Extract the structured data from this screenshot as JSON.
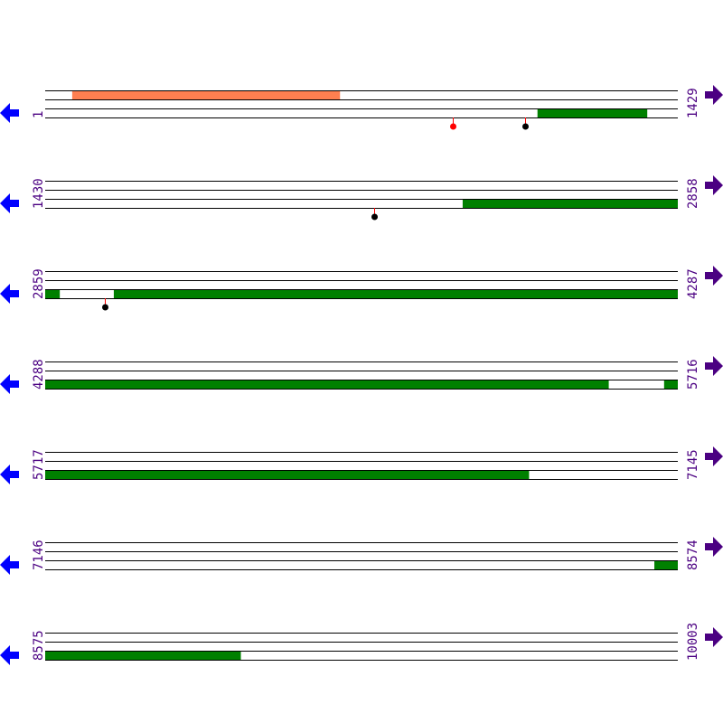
{
  "colors": {
    "line": "#000000",
    "feature_green": "#008000",
    "feature_orange": "#ff7f50",
    "label": "#4b0082",
    "left_arrow": "#0000ff",
    "right_arrow": "#4b0082",
    "marker_red": "#ff0000",
    "marker_black": "#000000",
    "stem": "#ff0000"
  },
  "icons": {
    "left": "arrow-left-icon",
    "right": "arrow-right-icon"
  },
  "rows": [
    {
      "start": "1",
      "end": "1429",
      "s": 1,
      "e": 1429,
      "features": [
        {
          "lane": 0,
          "from": 62,
          "to": 666,
          "color": "feature_orange"
        },
        {
          "lane": 2,
          "from": 1113,
          "to": 1360,
          "color": "feature_green"
        }
      ],
      "markers": [
        {
          "pos": 921,
          "color": "marker_red"
        },
        {
          "pos": 1085,
          "color": "marker_black"
        }
      ]
    },
    {
      "start": "1430",
      "end": "2858",
      "s": 1430,
      "e": 2858,
      "features": [
        {
          "lane": 2,
          "from": 2373,
          "to": 2858,
          "color": "feature_green"
        }
      ],
      "markers": [
        {
          "pos": 2173,
          "color": "marker_black"
        }
      ]
    },
    {
      "start": "2859",
      "end": "4287",
      "s": 2859,
      "e": 4287,
      "features": [
        {
          "lane": 2,
          "from": 2859,
          "to": 2891,
          "color": "feature_green"
        },
        {
          "lane": 2,
          "from": 3014,
          "to": 4287,
          "color": "feature_green"
        }
      ],
      "markers": [
        {
          "pos": 2994,
          "color": "marker_black"
        }
      ]
    },
    {
      "start": "4288",
      "end": "5716",
      "s": 4288,
      "e": 5716,
      "features": [
        {
          "lane": 2,
          "from": 4288,
          "to": 5560,
          "color": "feature_green"
        },
        {
          "lane": 2,
          "from": 5686,
          "to": 5716,
          "color": "feature_green"
        }
      ],
      "markers": []
    },
    {
      "start": "5717",
      "end": "7145",
      "s": 5717,
      "e": 7145,
      "features": [
        {
          "lane": 2,
          "from": 5717,
          "to": 6809,
          "color": "feature_green"
        }
      ],
      "markers": []
    },
    {
      "start": "7146",
      "end": "8574",
      "s": 7146,
      "e": 8574,
      "features": [
        {
          "lane": 2,
          "from": 8522,
          "to": 8574,
          "color": "feature_green"
        }
      ],
      "markers": []
    },
    {
      "start": "8575",
      "end": "10003",
      "s": 8575,
      "e": 10003,
      "features": [
        {
          "lane": 2,
          "from": 8575,
          "to": 9016,
          "color": "feature_green"
        }
      ],
      "markers": []
    }
  ]
}
